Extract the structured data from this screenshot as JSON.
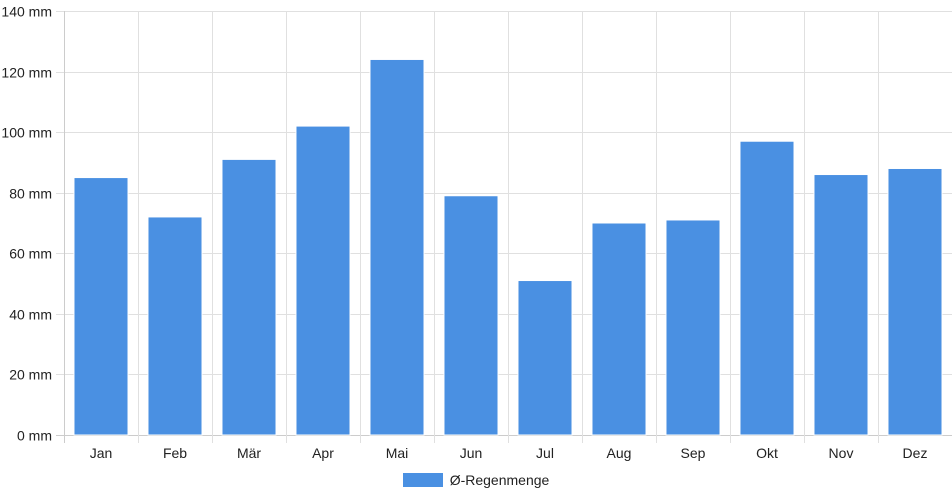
{
  "chart_data": {
    "type": "bar",
    "categories": [
      "Jan",
      "Feb",
      "Mär",
      "Apr",
      "Mai",
      "Jun",
      "Jul",
      "Aug",
      "Sep",
      "Okt",
      "Nov",
      "Dez"
    ],
    "series": [
      {
        "name": "Ø-Regenmenge",
        "values": [
          85,
          72,
          91,
          102,
          124,
          79,
          51,
          70,
          71,
          97,
          86,
          88
        ]
      }
    ],
    "ylim": [
      0,
      140
    ],
    "ytick_step": 20,
    "y_unit": "mm",
    "yticks": [
      "0 mm",
      "20 mm",
      "40 mm",
      "60 mm",
      "80 mm",
      "100 mm",
      "120 mm",
      "140 mm"
    ],
    "grid": true,
    "legend_position": "bottom",
    "bar_color": "#4a90e2",
    "bar_edge_color": "#ffffff",
    "grid_color": "#e0e0e0",
    "axis_color": "#cccccc"
  }
}
